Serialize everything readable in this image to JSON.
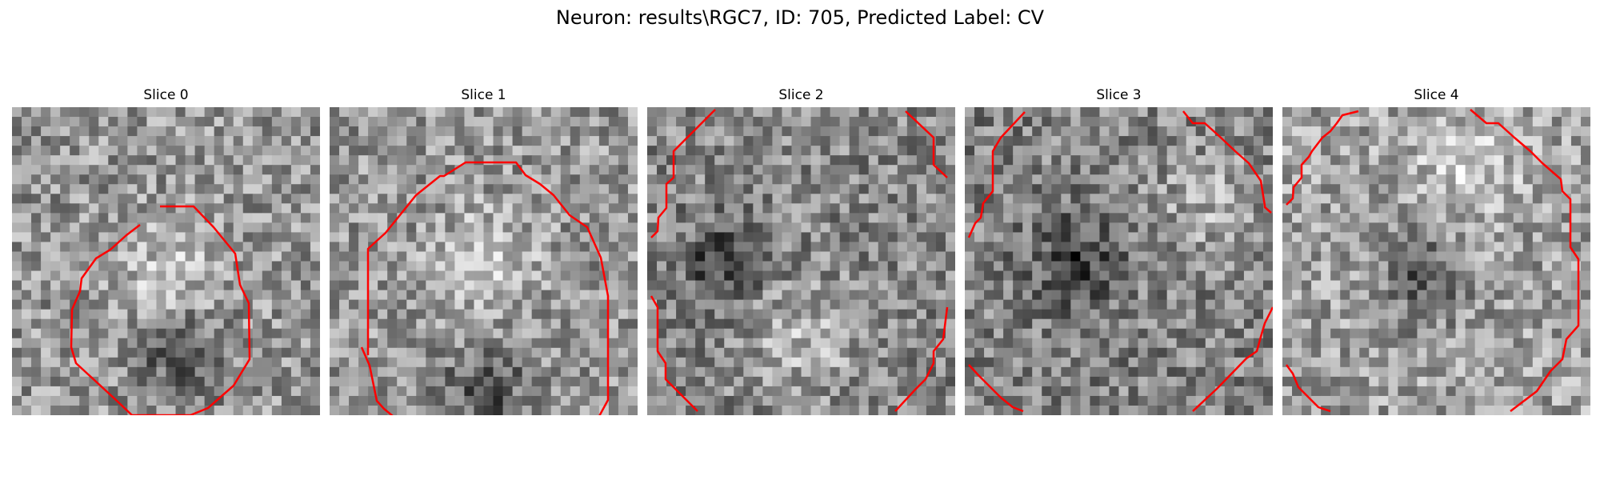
{
  "figure": {
    "title": "Neuron: results\\RGC7, ID: 705, Predicted Label: CV"
  },
  "contour_color": "#ff0000",
  "panels": [
    {
      "title": "Slice 0",
      "base_tone": 150,
      "dark_spot": [
        0.55,
        0.8
      ],
      "bright_spot": [
        0.5,
        0.55
      ]
    },
    {
      "title": "Slice 1",
      "base_tone": 150,
      "dark_spot": [
        0.5,
        0.93
      ],
      "bright_spot": [
        0.5,
        0.5
      ]
    },
    {
      "title": "Slice 2",
      "base_tone": 135,
      "dark_spot": [
        0.25,
        0.5
      ],
      "bright_spot": [
        0.5,
        0.75
      ]
    },
    {
      "title": "Slice 3",
      "base_tone": 130,
      "dark_spot": [
        0.35,
        0.5
      ],
      "bright_spot": [
        0.8,
        0.3
      ]
    },
    {
      "title": "Slice 4",
      "base_tone": 160,
      "dark_spot": [
        0.45,
        0.55
      ],
      "bright_spot": [
        0.6,
        0.2
      ]
    }
  ]
}
